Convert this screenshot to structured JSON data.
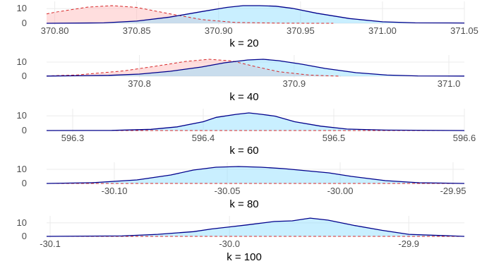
{
  "chart_data": [
    {
      "type": "area",
      "xlabel": "k = 20",
      "xlim": [
        370.795,
        371.05
      ],
      "ylim": [
        0,
        12
      ],
      "x_ticks": [
        {
          "value": 370.8,
          "label": "370.80"
        },
        {
          "value": 370.85,
          "label": "370.85"
        },
        {
          "value": 370.9,
          "label": "370.90"
        },
        {
          "value": 370.95,
          "label": "370.95"
        },
        {
          "value": 371.0,
          "label": "371.00"
        },
        {
          "value": 371.05,
          "label": "371.05"
        }
      ],
      "y_ticks": [
        {
          "value": 0,
          "label": "0"
        },
        {
          "value": 10,
          "label": "10"
        }
      ],
      "series": [
        {
          "style": "dashed",
          "color": "#d62728",
          "fill": "#ffb6b6",
          "x": [
            370.795,
            370.8,
            370.82,
            370.835,
            370.85,
            370.87,
            370.89,
            370.91,
            370.94,
            370.97
          ],
          "y": [
            6.4,
            7.5,
            11.0,
            12.0,
            10.8,
            6.5,
            2.5,
            0.6,
            0.05,
            0
          ]
        },
        {
          "style": "solid",
          "color": "#00008b",
          "fill": "#87dcff",
          "x": [
            370.795,
            370.83,
            370.85,
            370.87,
            370.89,
            370.905,
            370.915,
            370.925,
            370.935,
            370.945,
            370.96,
            370.98,
            371.0,
            371.02,
            371.05
          ],
          "y": [
            0,
            0.3,
            1.5,
            4.2,
            8.0,
            10.8,
            12.0,
            12.0,
            11.6,
            10.2,
            6.8,
            3.2,
            1.0,
            0.3,
            0.2
          ]
        }
      ]
    },
    {
      "type": "area",
      "xlabel": "k = 40",
      "xlim": [
        370.74,
        371.01
      ],
      "ylim": [
        0,
        12
      ],
      "x_ticks": [
        {
          "value": 370.8,
          "label": "370.8"
        },
        {
          "value": 370.9,
          "label": "370.9"
        },
        {
          "value": 371.0,
          "label": "371.0"
        }
      ],
      "y_ticks": [
        {
          "value": 0,
          "label": "0"
        },
        {
          "value": 10,
          "label": "10"
        }
      ],
      "series": [
        {
          "style": "dashed",
          "color": "#d62728",
          "fill": "#ffb6b6",
          "x": [
            370.74,
            370.76,
            370.79,
            370.81,
            370.83,
            370.845,
            370.86,
            370.875,
            370.89,
            370.91,
            370.93
          ],
          "y": [
            0.2,
            0.9,
            3.8,
            7.0,
            10.5,
            12.0,
            10.8,
            6.8,
            3.2,
            0.8,
            0
          ]
        },
        {
          "style": "solid",
          "color": "#00008b",
          "fill": "#87dcff",
          "x": [
            370.74,
            370.78,
            370.8,
            370.82,
            370.84,
            370.855,
            370.87,
            370.88,
            370.89,
            370.905,
            370.92,
            370.94,
            370.96,
            370.98,
            371.01
          ],
          "y": [
            0.1,
            0.6,
            1.5,
            3.5,
            6.5,
            9.5,
            11.5,
            12.0,
            11.0,
            8.5,
            5.5,
            2.5,
            0.8,
            0.2,
            0.1
          ]
        }
      ]
    },
    {
      "type": "area",
      "xlabel": "k = 60",
      "xlim": [
        596.28,
        596.6
      ],
      "ylim": [
        0,
        12
      ],
      "x_ticks": [
        {
          "value": 596.3,
          "label": "596.3"
        },
        {
          "value": 596.4,
          "label": "596.4"
        },
        {
          "value": 596.5,
          "label": "596.5"
        },
        {
          "value": 596.6,
          "label": "596.6"
        }
      ],
      "y_ticks": [
        {
          "value": 0,
          "label": "0"
        },
        {
          "value": 10,
          "label": "10"
        }
      ],
      "series": [
        {
          "style": "dashed",
          "color": "#d62728",
          "fill": "#ffb6b6",
          "x": [
            596.28,
            596.6
          ],
          "y": [
            0,
            0
          ]
        },
        {
          "style": "solid",
          "color": "#00008b",
          "fill": "#87dcff",
          "x": [
            596.28,
            596.33,
            596.36,
            596.38,
            596.4,
            596.41,
            596.425,
            596.435,
            596.445,
            596.455,
            596.47,
            596.49,
            596.51,
            596.54,
            596.6
          ],
          "y": [
            0,
            0.1,
            0.8,
            2.5,
            6.0,
            9.0,
            11.0,
            12.0,
            11.0,
            9.8,
            6.0,
            3.0,
            1.0,
            0.3,
            0
          ]
        }
      ]
    },
    {
      "type": "area",
      "xlabel": "k = 80",
      "xlim": [
        -30.13,
        -29.945
      ],
      "ylim": [
        0,
        12
      ],
      "x_ticks": [
        {
          "value": -30.1,
          "label": "-30.10"
        },
        {
          "value": -30.05,
          "label": "-30.05"
        },
        {
          "value": -30.0,
          "label": "-30.00"
        },
        {
          "value": -29.95,
          "label": "-29.95"
        }
      ],
      "y_ticks": [
        {
          "value": 0,
          "label": "0"
        },
        {
          "value": 10,
          "label": "10"
        }
      ],
      "series": [
        {
          "style": "dashed",
          "color": "#d62728",
          "fill": "#ffb6b6",
          "x": [
            -30.13,
            -29.945
          ],
          "y": [
            0,
            0
          ]
        },
        {
          "style": "solid",
          "color": "#00008b",
          "fill": "#87dcff",
          "x": [
            -30.13,
            -30.11,
            -30.09,
            -30.075,
            -30.065,
            -30.055,
            -30.045,
            -30.035,
            -30.025,
            -30.015,
            -30.005,
            -29.995,
            -29.98,
            -29.965,
            -29.945
          ],
          "y": [
            0,
            0.5,
            2.5,
            6.0,
            9.5,
            11.5,
            12.0,
            11.5,
            10.5,
            9.0,
            7.5,
            5.0,
            2.0,
            0.5,
            0
          ]
        }
      ]
    },
    {
      "type": "area",
      "xlabel": "k = 100",
      "xlim": [
        -30.102,
        -29.869
      ],
      "ylim": [
        0,
        12
      ],
      "x_ticks": [
        {
          "value": -30.1,
          "label": "-30.1"
        },
        {
          "value": -30.0,
          "label": "-30.0"
        },
        {
          "value": -29.9,
          "label": "-29.9"
        }
      ],
      "y_ticks": [
        {
          "value": 0,
          "label": "0"
        },
        {
          "value": 10,
          "label": "10"
        }
      ],
      "series": [
        {
          "style": "dashed",
          "color": "#d62728",
          "fill": "#ffb6b6",
          "x": [
            -30.102,
            -29.869
          ],
          "y": [
            0,
            0
          ]
        },
        {
          "style": "solid",
          "color": "#00008b",
          "fill": "#87dcff",
          "x": [
            -30.102,
            -30.06,
            -30.04,
            -30.02,
            -30.01,
            -30.0,
            -29.99,
            -29.975,
            -29.965,
            -29.955,
            -29.945,
            -29.93,
            -29.915,
            -29.9,
            -29.869
          ],
          "y": [
            0,
            0.3,
            1.5,
            3.5,
            5.5,
            7.0,
            8.5,
            11.0,
            11.5,
            13.5,
            12.0,
            8.0,
            4.5,
            1.5,
            0
          ]
        }
      ]
    }
  ]
}
